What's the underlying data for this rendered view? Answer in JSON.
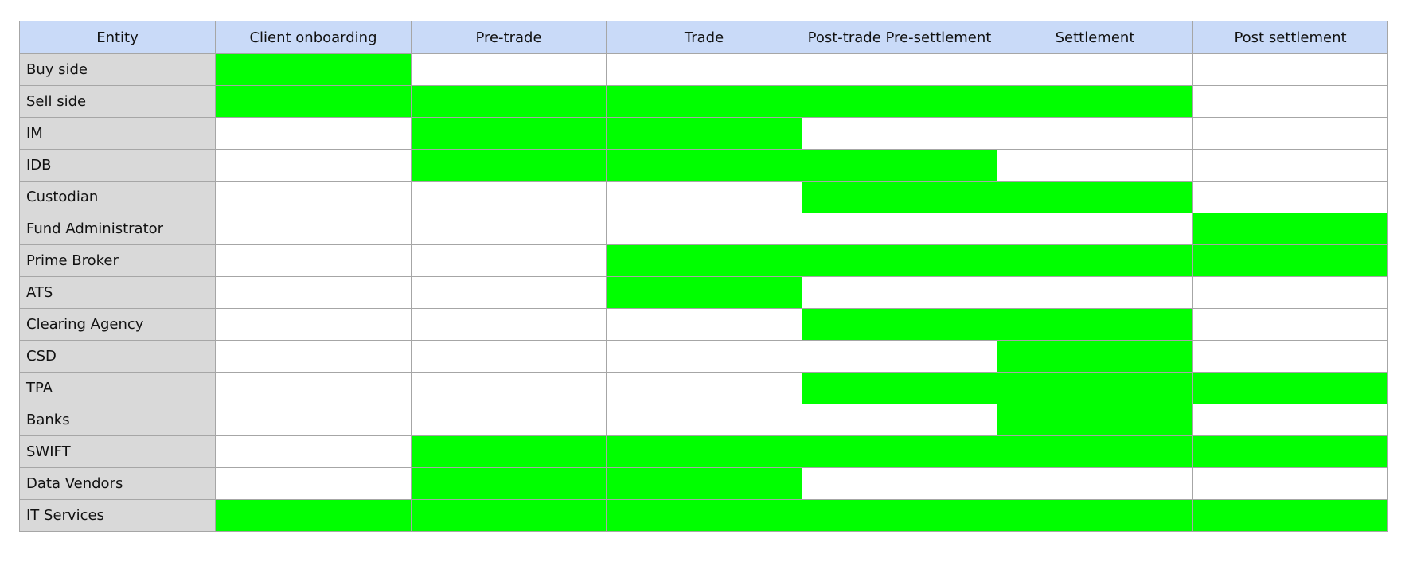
{
  "table": {
    "colors": {
      "header_bg": "#c9daf8",
      "entity_bg": "#d9d9d9",
      "active": "#00ff00",
      "inactive": "#ffffff",
      "grid": "#a6a6a6"
    },
    "entity_header": "Entity",
    "columns": [
      "Client onboarding",
      "Pre-trade",
      "Trade",
      "Post-trade Pre-settlement",
      "Settlement",
      "Post settlement"
    ],
    "rows": [
      {
        "entity": "Buy side",
        "active": [
          true,
          false,
          false,
          false,
          false,
          false
        ]
      },
      {
        "entity": "Sell side",
        "active": [
          true,
          true,
          true,
          true,
          true,
          false
        ]
      },
      {
        "entity": "IM",
        "active": [
          false,
          true,
          true,
          false,
          false,
          false
        ]
      },
      {
        "entity": "IDB",
        "active": [
          false,
          true,
          true,
          true,
          false,
          false
        ]
      },
      {
        "entity": "Custodian",
        "active": [
          false,
          false,
          false,
          true,
          true,
          false
        ]
      },
      {
        "entity": "Fund Administrator",
        "active": [
          false,
          false,
          false,
          false,
          false,
          true
        ]
      },
      {
        "entity": "Prime Broker",
        "active": [
          false,
          false,
          true,
          true,
          true,
          true
        ]
      },
      {
        "entity": "ATS",
        "active": [
          false,
          false,
          true,
          false,
          false,
          false
        ]
      },
      {
        "entity": "Clearing Agency",
        "active": [
          false,
          false,
          false,
          true,
          true,
          false
        ]
      },
      {
        "entity": "CSD",
        "active": [
          false,
          false,
          false,
          false,
          true,
          false
        ]
      },
      {
        "entity": "TPA",
        "active": [
          false,
          false,
          false,
          true,
          true,
          true
        ]
      },
      {
        "entity": "Banks",
        "active": [
          false,
          false,
          false,
          false,
          true,
          false
        ]
      },
      {
        "entity": "SWIFT",
        "active": [
          false,
          true,
          true,
          true,
          true,
          true
        ]
      },
      {
        "entity": "Data Vendors",
        "active": [
          false,
          true,
          true,
          false,
          false,
          false
        ]
      },
      {
        "entity": "IT Services",
        "active": [
          true,
          true,
          true,
          true,
          true,
          true
        ]
      }
    ]
  }
}
